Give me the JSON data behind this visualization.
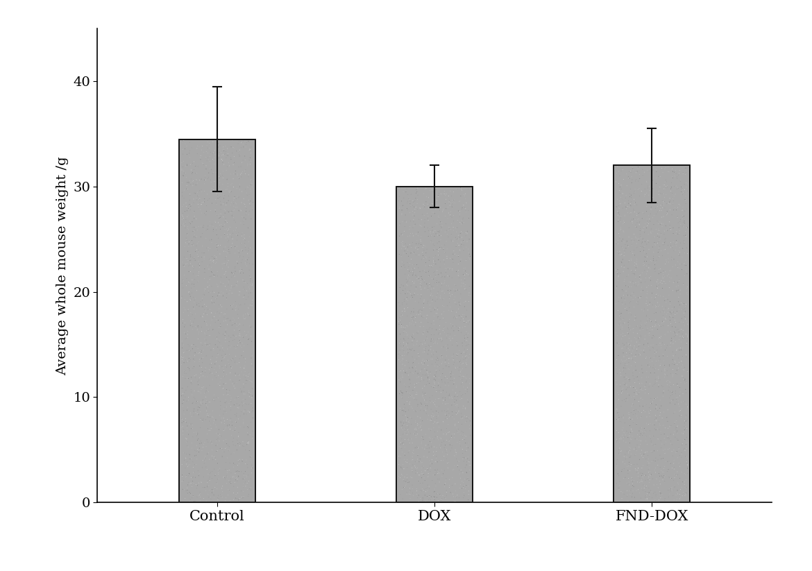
{
  "categories": [
    "Control",
    "DOX",
    "FND-DOX"
  ],
  "values": [
    34.5,
    30.0,
    32.0
  ],
  "errors": [
    5.0,
    2.0,
    3.5
  ],
  "bar_color": "#a8a8a8",
  "bar_edgecolor": "#111111",
  "bar_width": 0.35,
  "ylabel": "Average whole mouse weight /g",
  "ylim": [
    0,
    45
  ],
  "yticks": [
    0,
    10,
    20,
    30,
    40
  ],
  "background_color": "#ffffff",
  "ylabel_fontsize": 14,
  "tick_fontsize": 14,
  "xtick_fontsize": 15,
  "error_capsize": 5,
  "error_linewidth": 1.5,
  "figsize": [
    11.7,
    8.23
  ],
  "noise_seed": 42,
  "noise_alpha": 0.6
}
